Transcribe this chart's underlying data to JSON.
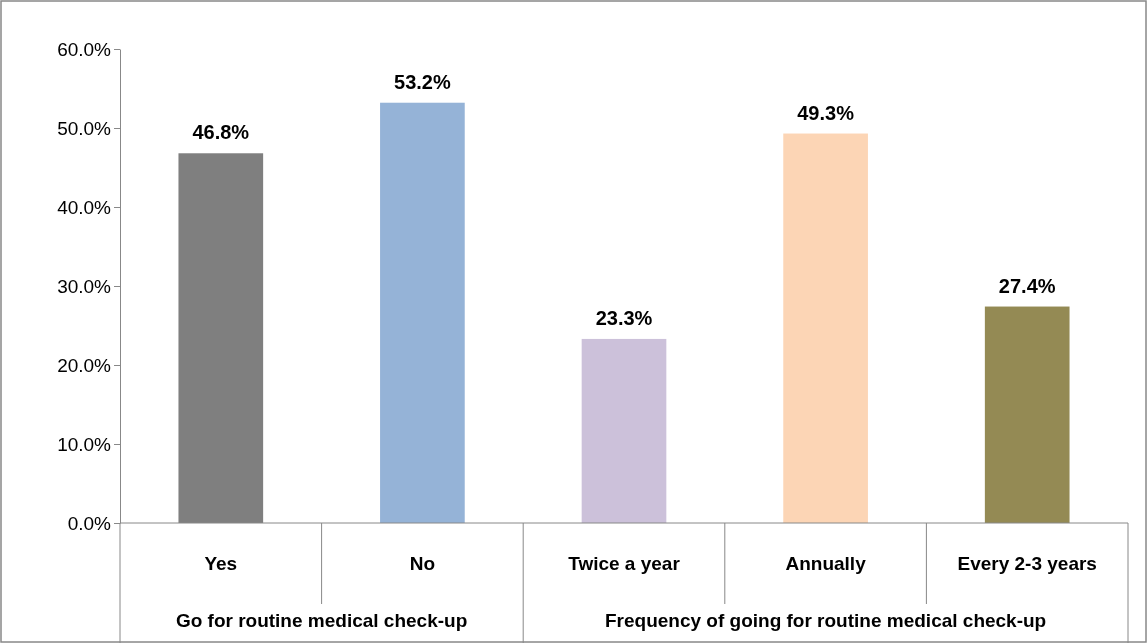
{
  "chart_data": {
    "type": "bar",
    "categories": [
      "Yes",
      "No",
      "Twice a year",
      "Annually",
      "Every 2-3 years"
    ],
    "values": [
      46.8,
      53.2,
      23.3,
      49.3,
      27.4
    ],
    "colors": [
      "#7f7f7f",
      "#95b3d7",
      "#ccc1da",
      "#fcd5b5",
      "#948a54"
    ],
    "ylim": [
      0,
      60
    ],
    "yticks": [
      {
        "value": 0,
        "label": "0.0%"
      },
      {
        "value": 10,
        "label": "10.0%"
      },
      {
        "value": 20,
        "label": "20.0%"
      },
      {
        "value": 30,
        "label": "30.0%"
      },
      {
        "value": 40,
        "label": "40.0%"
      },
      {
        "value": 50,
        "label": "50.0%"
      },
      {
        "value": 60,
        "label": "60.0%"
      }
    ],
    "value_labels": [
      "46.8%",
      "53.2%",
      "23.3%",
      "49.3%",
      "27.4%"
    ],
    "annotations": [
      "Go for routine medical check-up",
      "Frequency of going for routine medical check-up"
    ],
    "grid": false
  }
}
